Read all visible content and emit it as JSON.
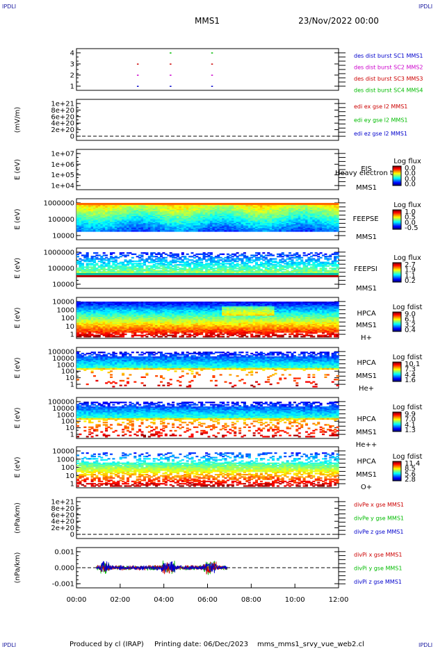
{
  "corners": {
    "tl": "IPDLI",
    "tr": "IPDLI",
    "bl": "IPDLI",
    "br": "IPDLI"
  },
  "header": {
    "spacecraft": "MMS1",
    "date": "23/Nov/2022 00:00"
  },
  "footer": {
    "produced": "Produced by cl (IRAP)",
    "printing": "Printing date: 06/Dec/2023",
    "file": "mms_mms1_srvy_vue_web2.cl"
  },
  "chart_data": {
    "type": "heatmap",
    "x_ticks": [
      "00:00",
      "02:00",
      "04:00",
      "06:00",
      "08:00",
      "10:00",
      "12:00"
    ],
    "x_range_hours": [
      0,
      12
    ],
    "panels": [
      {
        "id": "burst",
        "ylabel": "",
        "yticks": [
          "4",
          "3",
          "2",
          "1"
        ],
        "legend": [
          {
            "text": "des dist burst SC1 MMS1",
            "color": "#0000cc"
          },
          {
            "text": "des dist burst SC2 MMS2",
            "color": "#cc00cc"
          },
          {
            "text": "des dist burst SC3 MMS3",
            "color": "#cc0000"
          },
          {
            "text": "des dist burst SC4 MMS4",
            "color": "#00bb00"
          }
        ],
        "marks": [
          {
            "sc": 4,
            "t": 4.3
          },
          {
            "sc": 4,
            "t": 6.2
          },
          {
            "sc": 3,
            "t": 2.8
          },
          {
            "sc": 3,
            "t": 4.3
          },
          {
            "sc": 3,
            "t": 6.2
          },
          {
            "sc": 2,
            "t": 2.8
          },
          {
            "sc": 2,
            "t": 4.3
          },
          {
            "sc": 2,
            "t": 6.2
          },
          {
            "sc": 1,
            "t": 2.8
          },
          {
            "sc": 1,
            "t": 4.3
          },
          {
            "sc": 1,
            "t": 6.2
          }
        ]
      },
      {
        "id": "edi",
        "ylabel": "(mV/m)",
        "yticks": [
          "1e+21",
          "8e+20",
          "6e+20",
          "4e+20",
          "2e+20",
          "0"
        ],
        "legend": [
          {
            "text": "edi ex gse l2 MMS1",
            "color": "#cc0000"
          },
          {
            "text": "edi ey gse l2 MMS1",
            "color": "#00bb00"
          },
          {
            "text": "edi ez gse l2 MMS1",
            "color": "#0000cc"
          }
        ]
      },
      {
        "id": "eis",
        "ylabel": "E (eV)",
        "yticks": [
          "1e+07",
          "1e+06",
          "1e+05",
          "1e+04"
        ],
        "labels": [
          "EIS",
          "Heavy electron to",
          "MMS1"
        ],
        "colorbar": {
          "title": "Log flux",
          "ticks": [
            "0.0",
            "0.0",
            "0.0",
            "0.0"
          ]
        }
      },
      {
        "id": "feepse",
        "ylabel": "E (eV)",
        "yticks": [
          "1000000",
          "100000",
          "10000"
        ],
        "labels": [
          "FEEPSE",
          "MMS1"
        ],
        "colorbar": {
          "title": "Log flux",
          "ticks": [
            "1.0",
            "0.5",
            "0.0",
            "-0.5"
          ]
        }
      },
      {
        "id": "feepsi",
        "ylabel": "E (eV)",
        "yticks": [
          "1000000",
          "100000",
          "10000"
        ],
        "labels": [
          "FEEPSI",
          "MMS1"
        ],
        "colorbar": {
          "title": "Log flux",
          "ticks": [
            "2.7",
            "1.9",
            "1.1",
            "0.2"
          ]
        }
      },
      {
        "id": "hpca_h",
        "ylabel": "E (eV)",
        "yticks": [
          "10000",
          "1000",
          "100",
          "10",
          "1"
        ],
        "labels": [
          "HPCA",
          "MMS1",
          "H+"
        ],
        "colorbar": {
          "title": "Log fdist",
          "ticks": [
            "9.0",
            "6.1",
            "3.2",
            "0.4"
          ]
        }
      },
      {
        "id": "hpca_he",
        "ylabel": "E (eV)",
        "yticks": [
          "100000",
          "10000",
          "1000",
          "100",
          "10",
          "1"
        ],
        "labels": [
          "HPCA",
          "MMS1",
          "He+"
        ],
        "colorbar": {
          "title": "Log fdist",
          "ticks": [
            "10.1",
            "7.3",
            "4.4",
            "1.6"
          ]
        }
      },
      {
        "id": "hpca_hepp",
        "ylabel": "E (eV)",
        "yticks": [
          "100000",
          "10000",
          "1000",
          "100",
          "10",
          "1"
        ],
        "labels": [
          "HPCA",
          "MMS1",
          "He++"
        ],
        "colorbar": {
          "title": "Log fdist",
          "ticks": [
            "9.9",
            "7.0",
            "4.1",
            "1.3"
          ]
        }
      },
      {
        "id": "hpca_o",
        "ylabel": "E (eV)",
        "yticks": [
          "10000",
          "1000",
          "100",
          "10",
          "1"
        ],
        "labels": [
          "HPCA",
          "MMS1",
          "O+"
        ],
        "colorbar": {
          "title": "Log fdist",
          "ticks": [
            "11.4",
            "8.5",
            "5.6",
            "2.8"
          ]
        }
      },
      {
        "id": "divpe",
        "ylabel": "(nPa/km)",
        "yticks": [
          "1e+21",
          "8e+20",
          "6e+20",
          "4e+20",
          "2e+20",
          "0"
        ],
        "legend": [
          {
            "text": "divPe x gse MMS1",
            "color": "#cc0000"
          },
          {
            "text": "divPe y gse MMS1",
            "color": "#00bb00"
          },
          {
            "text": "divPe z gse MMS1",
            "color": "#0000cc"
          }
        ]
      },
      {
        "id": "divpi",
        "ylabel": "(nPa/km)",
        "yticks": [
          "0.001",
          "0.000",
          "-0.001"
        ],
        "legend": [
          {
            "text": "divPi x gse MMS1",
            "color": "#cc0000"
          },
          {
            "text": "divPi y gse MMS1",
            "color": "#00bb00"
          },
          {
            "text": "divPi z gse MMS1",
            "color": "#0000cc"
          }
        ],
        "data_interval_hours": [
          0.9,
          6.9
        ]
      }
    ]
  }
}
